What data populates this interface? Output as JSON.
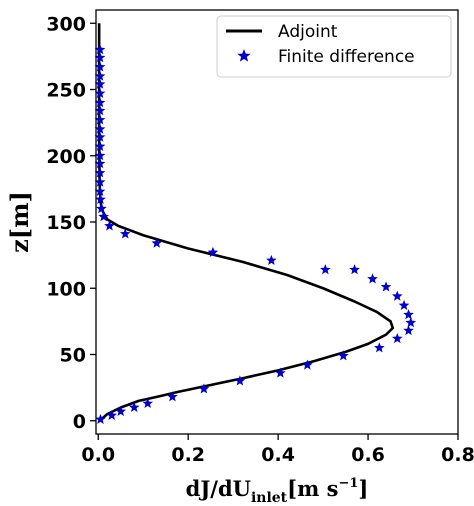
{
  "chart_data": {
    "type": "line",
    "xlabel": {
      "main": "dJ/dU",
      "sub": "inlet",
      "unit_open": "[",
      "unit": "m s",
      "unit_exp": "−1",
      "unit_close": "]"
    },
    "ylabel": {
      "main": "z",
      "unit_open": "[",
      "unit": "m",
      "unit_close": "]"
    },
    "xlim": [
      -0.005,
      0.8
    ],
    "ylim": [
      -10,
      310
    ],
    "xticks": [
      {
        "value": 0.0,
        "label": "0.0"
      },
      {
        "value": 0.2,
        "label": "0.2"
      },
      {
        "value": 0.4,
        "label": "0.4"
      },
      {
        "value": 0.6,
        "label": "0.6"
      },
      {
        "value": 0.8,
        "label": "0.8"
      }
    ],
    "yticks": [
      {
        "value": 0,
        "label": "0"
      },
      {
        "value": 50,
        "label": "50"
      },
      {
        "value": 100,
        "label": "100"
      },
      {
        "value": 150,
        "label": "150"
      },
      {
        "value": 200,
        "label": "200"
      },
      {
        "value": 250,
        "label": "250"
      },
      {
        "value": 300,
        "label": "300"
      }
    ],
    "grid": false,
    "legend": {
      "placement": "top-right",
      "entries": [
        {
          "label": "Adjoint",
          "marker": "line",
          "color": "#000000"
        },
        {
          "label": "Finite difference",
          "marker": "star",
          "color": "#0000cc"
        }
      ]
    },
    "series": [
      {
        "name": "Adjoint",
        "style": "line",
        "color": "#000000",
        "x": [
          0.003,
          0.02,
          0.05,
          0.09,
          0.13,
          0.18,
          0.25,
          0.32,
          0.4,
          0.48,
          0.55,
          0.6,
          0.64,
          0.655,
          0.65,
          0.62,
          0.57,
          0.5,
          0.42,
          0.32,
          0.2,
          0.1,
          0.045,
          0.02,
          0.01,
          0.005,
          0.003,
          0.002,
          0.002
        ],
        "y": [
          0,
          5,
          10,
          15,
          18,
          22,
          27,
          32,
          38,
          45,
          52,
          58,
          65,
          70,
          75,
          82,
          90,
          100,
          110,
          120,
          130,
          140,
          147,
          152,
          158,
          165,
          180,
          220,
          300
        ]
      },
      {
        "name": "Finite difference",
        "style": "scatter",
        "marker": "star",
        "color": "#0000cc",
        "x": [
          0.005,
          0.03,
          0.05,
          0.08,
          0.11,
          0.165,
          0.235,
          0.315,
          0.405,
          0.465,
          0.545,
          0.625,
          0.665,
          0.69,
          0.695,
          0.69,
          0.68,
          0.665,
          0.64,
          0.61,
          0.57,
          0.505,
          0.385,
          0.255,
          0.13,
          0.06,
          0.025,
          0.012,
          0.007,
          0.005,
          0.004,
          0.004,
          0.004,
          0.004,
          0.004,
          0.004,
          0.004,
          0.004,
          0.004,
          0.004,
          0.004,
          0.004,
          0.004,
          0.004,
          0.004,
          0.004,
          0.004
        ],
        "y": [
          1,
          4,
          7,
          10,
          13,
          18,
          24,
          30,
          36,
          42,
          49,
          55,
          62,
          68,
          74,
          80,
          87,
          94,
          101,
          107,
          114,
          114,
          121,
          127,
          134,
          141,
          147,
          154,
          160,
          167,
          173,
          180,
          187,
          194,
          200,
          207,
          214,
          220,
          227,
          234,
          240,
          247,
          254,
          260,
          267,
          274,
          280
        ]
      }
    ]
  }
}
